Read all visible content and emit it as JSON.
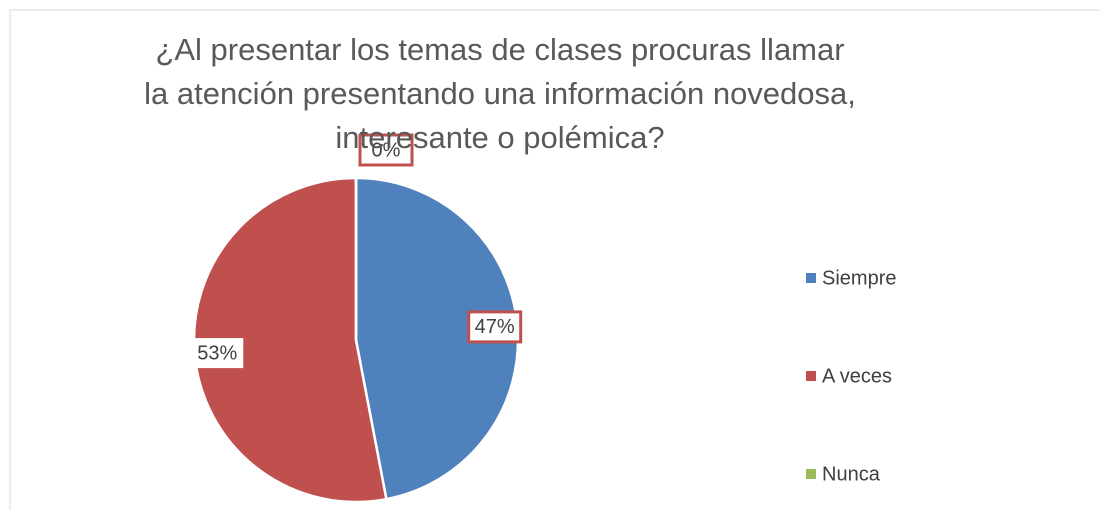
{
  "chart_data": {
    "type": "pie",
    "title": "¿Al presentar los temas de clases procuras llamar la atención presentando una información novedosa, interesante o polémica?",
    "categories": [
      "Siempre",
      "A veces",
      "Nunca"
    ],
    "values": [
      47,
      53,
      0
    ],
    "value_labels": [
      "47%",
      "53%",
      "0%"
    ],
    "colors": [
      "#4f81bd",
      "#c0504d",
      "#9bbb59"
    ],
    "legend": "right"
  }
}
